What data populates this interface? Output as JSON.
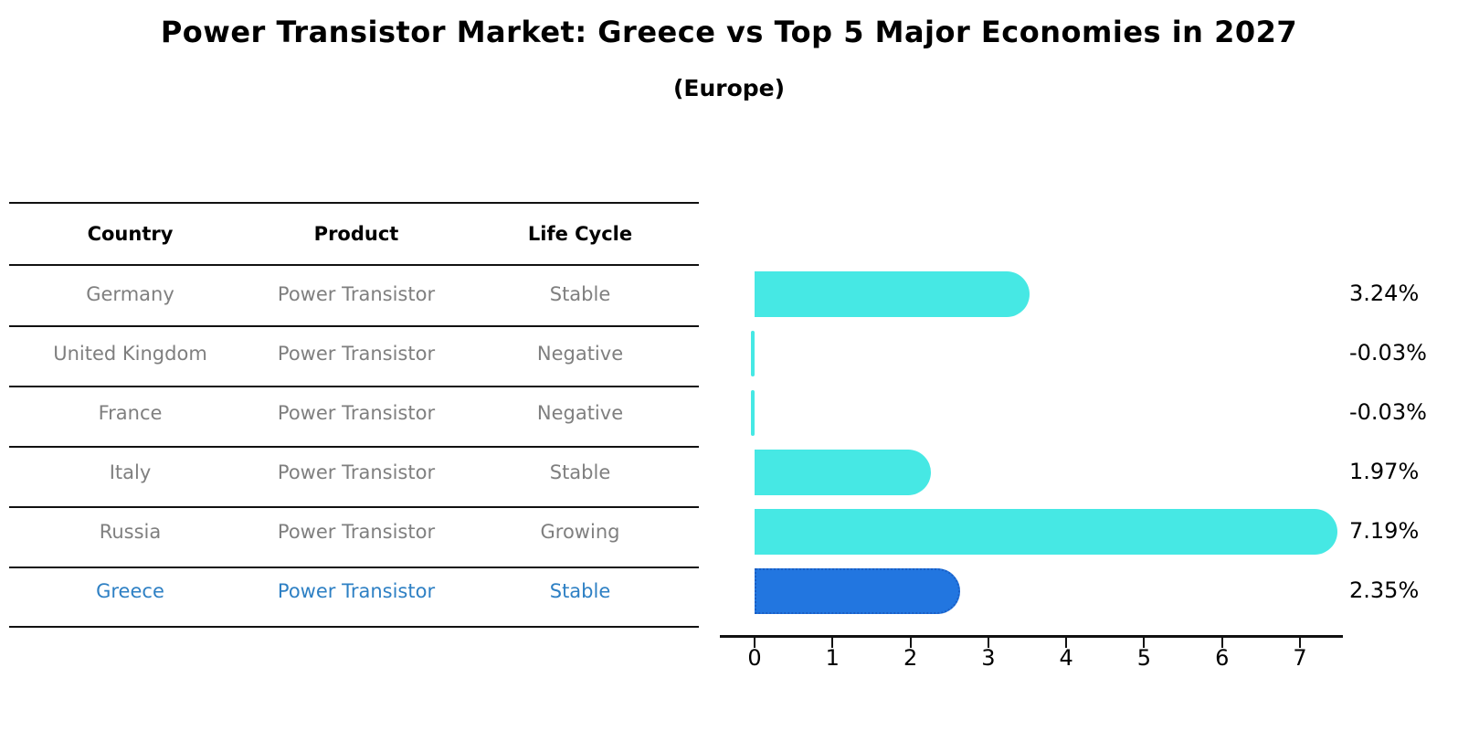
{
  "header": {
    "title": "Power Transistor Market: Greece vs Top 5 Major Economies in 2027",
    "subtitle": "(Europe)"
  },
  "table": {
    "headers": [
      "Country",
      "Product",
      "Life Cycle"
    ],
    "rows": [
      {
        "country": "Germany",
        "product": "Power Transistor",
        "life_cycle": "Stable",
        "highlighted": false
      },
      {
        "country": "United Kingdom",
        "product": "Power Transistor",
        "life_cycle": "Negative",
        "highlighted": false
      },
      {
        "country": "France",
        "product": "Power Transistor",
        "life_cycle": "Negative",
        "highlighted": false
      },
      {
        "country": "Italy",
        "product": "Power Transistor",
        "life_cycle": "Stable",
        "highlighted": false
      },
      {
        "country": "Russia",
        "product": "Power Transistor",
        "life_cycle": "Growing",
        "highlighted": false
      },
      {
        "country": "Greece",
        "product": "Power Transistor",
        "life_cycle": "Stable",
        "highlighted": true
      }
    ]
  },
  "chart_data": {
    "type": "bar",
    "orientation": "horizontal",
    "title": "Power Transistor Market: Greece vs Top 5 Major Economies in 2027 (Europe)",
    "categories": [
      "Germany",
      "United Kingdom",
      "France",
      "Italy",
      "Russia",
      "Greece"
    ],
    "values": [
      3.24,
      -0.03,
      -0.03,
      1.97,
      7.19,
      2.35
    ],
    "value_labels": [
      "3.24%",
      "-0.03%",
      "-0.03%",
      "1.97%",
      "7.19%",
      "2.35%"
    ],
    "x_ticks": [
      "0",
      "1",
      "2",
      "3",
      "4",
      "5",
      "6",
      "7"
    ],
    "xlim": [
      -0.45,
      7.55
    ],
    "grid": false,
    "legend": false,
    "highlight_index": 5
  },
  "colors": {
    "bar_default": "#46e8e4",
    "bar_highlight": "#2276e0",
    "bar_highlight_border": "#1a5ec4",
    "row_text": "#7f7f7f",
    "highlight_text": "#2e80c4",
    "axis": "#111111"
  }
}
